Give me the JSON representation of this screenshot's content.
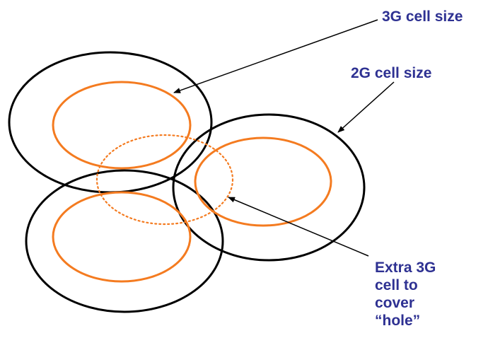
{
  "labels": {
    "cell_3g": "3G cell size",
    "cell_2g": "2G cell size",
    "extra_lines": [
      "Extra 3G",
      "cell to",
      "cover",
      "“hole”"
    ]
  },
  "colors": {
    "cell_2g_stroke": "#000000",
    "cell_3g_stroke": "#f47b20",
    "label_text": "#2e3192",
    "arrow": "#000000"
  }
}
